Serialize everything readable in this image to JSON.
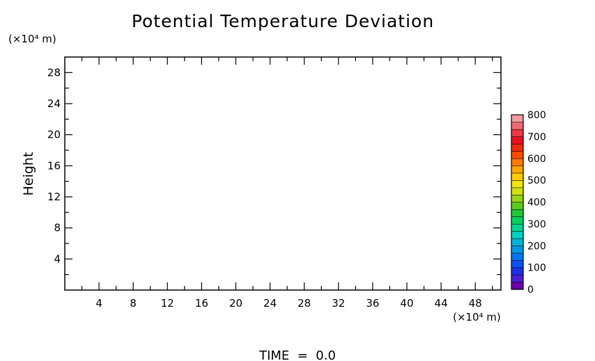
{
  "chart_data": {
    "type": "heatmap",
    "title": "Potential Temperature Deviation",
    "ylabel": "Height",
    "xlabel": "",
    "x_unit": "(×10⁴ m)",
    "y_unit": "(×10⁴ m)",
    "xlim": [
      0,
      51
    ],
    "ylim": [
      0,
      30
    ],
    "x_ticks": [
      4,
      8,
      12,
      16,
      20,
      24,
      28,
      32,
      36,
      40,
      44,
      48
    ],
    "y_ticks": [
      4,
      8,
      12,
      16,
      20,
      24,
      28
    ],
    "x_minor_step": 2,
    "y_minor_step": 2,
    "values": [],
    "colorbar": {
      "min": 0,
      "max": 800,
      "tick_labels": [
        "0",
        "100",
        "200",
        "300",
        "400",
        "500",
        "600",
        "700",
        "800"
      ],
      "colors": [
        "#6a00a8",
        "#4b1fd6",
        "#1f2fe8",
        "#0b53f0",
        "#0077f0",
        "#0096e8",
        "#00b4d8",
        "#00cfc0",
        "#00d690",
        "#00d060",
        "#1ec83a",
        "#5acb1e",
        "#98d316",
        "#cfe010",
        "#f0e410",
        "#ffcc00",
        "#ffa500",
        "#ff7a00",
        "#ff4d00",
        "#f02a10",
        "#e81020",
        "#e83a44",
        "#ee6a72",
        "#f59aa0"
      ]
    },
    "footer": "TIME  =  0.0"
  }
}
